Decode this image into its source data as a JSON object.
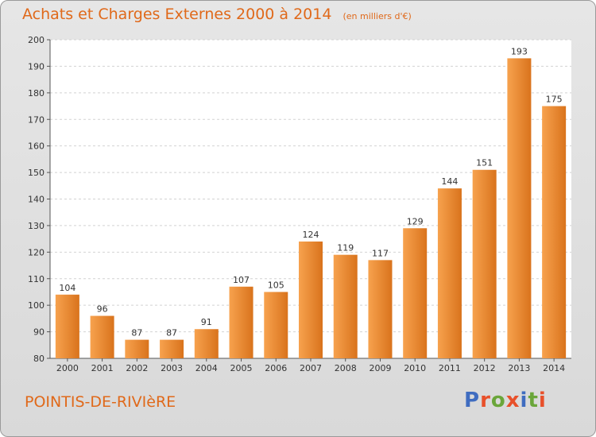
{
  "header": {
    "title": "Achats et Charges Externes 2000 à 2014",
    "unit": "(en milliers d'€)"
  },
  "footer": {
    "commune": "POINTIS-DE-RIVIèRE",
    "brand": "Proxiti"
  },
  "colors": {
    "bar_light": "#f7a24e",
    "bar_dark": "#d9731c",
    "title": "#e0691a",
    "brand_letters": [
      "#3f6cc0",
      "#e8502a",
      "#6aa63a",
      "#e8502a",
      "#3f6cc0",
      "#6aa63a",
      "#e8502a"
    ]
  },
  "chart_data": {
    "type": "bar",
    "title": "Achats et Charges Externes 2000 à 2014",
    "categories": [
      "2000",
      "2001",
      "2002",
      "2003",
      "2004",
      "2005",
      "2006",
      "2007",
      "2008",
      "2009",
      "2010",
      "2011",
      "2012",
      "2013",
      "2014"
    ],
    "values": [
      104,
      96,
      87,
      87,
      91,
      107,
      105,
      124,
      119,
      117,
      129,
      144,
      151,
      193,
      175
    ],
    "ylim": [
      80,
      200
    ],
    "yticks": [
      80,
      90,
      100,
      110,
      120,
      130,
      140,
      150,
      160,
      170,
      180,
      190,
      200
    ],
    "grid": true,
    "xlabel": "",
    "ylabel": ""
  }
}
